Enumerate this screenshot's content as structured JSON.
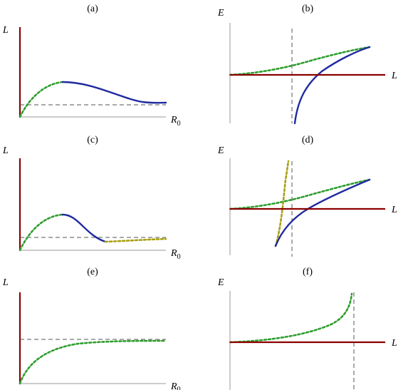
{
  "panels": {
    "a": {
      "label": "(a)",
      "y_axis": "L",
      "x_axis": "R",
      "x_axis_sub": "0"
    },
    "b": {
      "label": "(b)",
      "y_axis": "E",
      "x_axis": "L"
    },
    "c": {
      "label": "(c)",
      "y_axis": "L",
      "x_axis": "R",
      "x_axis_sub": "0"
    },
    "d": {
      "label": "(d)",
      "y_axis": "E",
      "x_axis": "L"
    },
    "e": {
      "label": "(e)",
      "y_axis": "L",
      "x_axis": "R",
      "x_axis_sub": "0"
    },
    "f": {
      "label": "(f)",
      "y_axis": "E",
      "x_axis": "L"
    }
  },
  "colors": {
    "axis": "#8b0000",
    "stable_branch": "#1f2a9e",
    "metastable_branch": "#2e9e2e",
    "third_branch": "#a8a012"
  }
}
